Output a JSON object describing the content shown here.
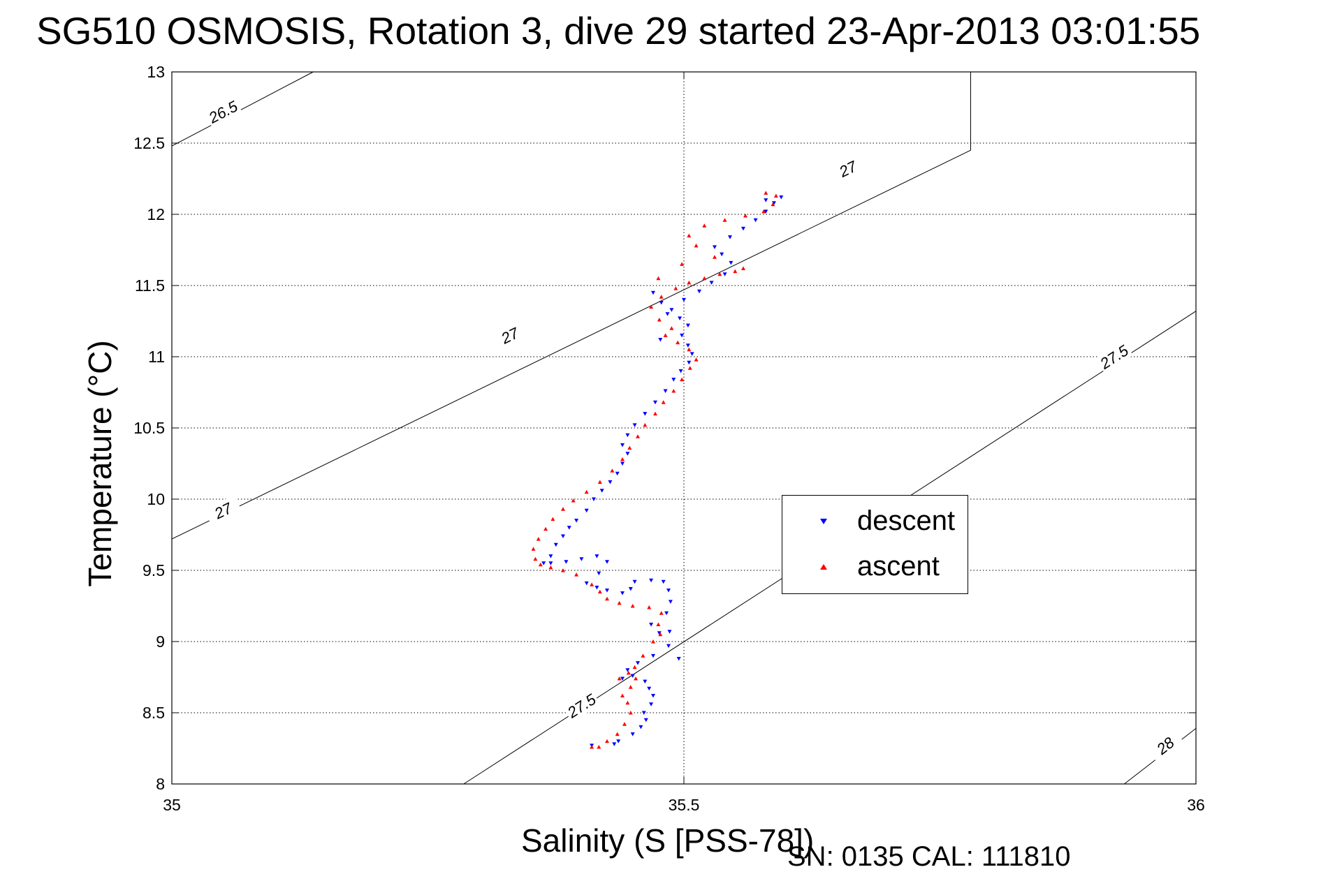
{
  "title": "SG510 OSMOSIS, Rotation 3, dive 29 started 23-Apr-2013 03:01:55",
  "footer": "SN: 0135  CAL: 111810",
  "chart_data": {
    "type": "scatter",
    "xlabel": "Salinity (S [PSS-78])",
    "ylabel": "Temperature (°C)",
    "xlim": [
      35,
      36
    ],
    "ylim": [
      8,
      13
    ],
    "xticks": [
      "35",
      "35.5",
      "36"
    ],
    "yticks": [
      "8",
      "8.5",
      "9",
      "9.5",
      "10",
      "10.5",
      "11",
      "11.5",
      "12",
      "12.5",
      "13"
    ],
    "grid": true,
    "legend_position": "lower-right",
    "contour_labels": [
      "26.5",
      "27",
      "27",
      "27",
      "27.5",
      "27.5",
      "28"
    ],
    "series": [
      {
        "name": "descent",
        "color": "#0000ff",
        "marker": "triangle-down",
        "points": [
          [
            35.432,
            8.28
          ],
          [
            35.41,
            8.27
          ],
          [
            35.436,
            8.3
          ],
          [
            35.45,
            8.35
          ],
          [
            35.458,
            8.4
          ],
          [
            35.463,
            8.45
          ],
          [
            35.461,
            8.5
          ],
          [
            35.468,
            8.56
          ],
          [
            35.47,
            8.62
          ],
          [
            35.466,
            8.67
          ],
          [
            35.462,
            8.72
          ],
          [
            35.45,
            8.76
          ],
          [
            35.44,
            8.74
          ],
          [
            35.445,
            8.8
          ],
          [
            35.455,
            8.85
          ],
          [
            35.47,
            8.9
          ],
          [
            35.485,
            8.97
          ],
          [
            35.495,
            8.88
          ],
          [
            35.486,
            9.07
          ],
          [
            35.476,
            9.06
          ],
          [
            35.468,
            9.12
          ],
          [
            35.483,
            9.2
          ],
          [
            35.487,
            9.28
          ],
          [
            35.485,
            9.36
          ],
          [
            35.48,
            9.42
          ],
          [
            35.468,
            9.43
          ],
          [
            35.452,
            9.42
          ],
          [
            35.448,
            9.37
          ],
          [
            35.44,
            9.34
          ],
          [
            35.425,
            9.36
          ],
          [
            35.415,
            9.38
          ],
          [
            35.405,
            9.41
          ],
          [
            35.417,
            9.48
          ],
          [
            35.425,
            9.56
          ],
          [
            35.415,
            9.6
          ],
          [
            35.4,
            9.58
          ],
          [
            35.385,
            9.56
          ],
          [
            35.37,
            9.55
          ],
          [
            35.363,
            9.55
          ],
          [
            35.37,
            9.6
          ],
          [
            35.375,
            9.68
          ],
          [
            35.382,
            9.74
          ],
          [
            35.388,
            9.8
          ],
          [
            35.395,
            9.85
          ],
          [
            35.405,
            9.92
          ],
          [
            35.412,
            10.0
          ],
          [
            35.42,
            10.06
          ],
          [
            35.428,
            10.12
          ],
          [
            35.435,
            10.18
          ],
          [
            35.44,
            10.25
          ],
          [
            35.445,
            10.32
          ],
          [
            35.44,
            10.38
          ],
          [
            35.445,
            10.45
          ],
          [
            35.452,
            10.52
          ],
          [
            35.462,
            10.6
          ],
          [
            35.472,
            10.68
          ],
          [
            35.482,
            10.76
          ],
          [
            35.49,
            10.84
          ],
          [
            35.497,
            10.9
          ],
          [
            35.505,
            10.96
          ],
          [
            35.508,
            11.02
          ],
          [
            35.504,
            11.08
          ],
          [
            35.498,
            11.15
          ],
          [
            35.504,
            11.22
          ],
          [
            35.496,
            11.27
          ],
          [
            35.488,
            11.33
          ],
          [
            35.478,
            11.38
          ],
          [
            35.47,
            11.45
          ],
          [
            35.477,
            11.12
          ],
          [
            35.484,
            11.3
          ],
          [
            35.5,
            11.4
          ],
          [
            35.515,
            11.46
          ],
          [
            35.527,
            11.52
          ],
          [
            35.54,
            11.58
          ],
          [
            35.546,
            11.66
          ],
          [
            35.537,
            11.72
          ],
          [
            35.53,
            11.77
          ],
          [
            35.545,
            11.84
          ],
          [
            35.558,
            11.9
          ],
          [
            35.57,
            11.96
          ],
          [
            35.58,
            12.02
          ],
          [
            35.588,
            12.08
          ],
          [
            35.595,
            12.12
          ],
          [
            35.58,
            12.1
          ]
        ]
      },
      {
        "name": "ascent",
        "color": "#ff0000",
        "marker": "triangle-up",
        "points": [
          [
            35.417,
            8.26
          ],
          [
            35.41,
            8.26
          ],
          [
            35.425,
            8.3
          ],
          [
            35.435,
            8.35
          ],
          [
            35.442,
            8.42
          ],
          [
            35.448,
            8.5
          ],
          [
            35.445,
            8.57
          ],
          [
            35.44,
            8.62
          ],
          [
            35.448,
            8.68
          ],
          [
            35.453,
            8.74
          ],
          [
            35.446,
            8.78
          ],
          [
            35.437,
            8.74
          ],
          [
            35.452,
            8.82
          ],
          [
            35.46,
            8.9
          ],
          [
            35.47,
            9.0
          ],
          [
            35.477,
            9.05
          ],
          [
            35.475,
            9.12
          ],
          [
            35.478,
            9.2
          ],
          [
            35.466,
            9.24
          ],
          [
            35.45,
            9.25
          ],
          [
            35.437,
            9.27
          ],
          [
            35.425,
            9.3
          ],
          [
            35.418,
            9.35
          ],
          [
            35.41,
            9.4
          ],
          [
            35.395,
            9.47
          ],
          [
            35.382,
            9.5
          ],
          [
            35.37,
            9.52
          ],
          [
            35.36,
            9.54
          ],
          [
            35.355,
            9.58
          ],
          [
            35.353,
            9.65
          ],
          [
            35.358,
            9.72
          ],
          [
            35.365,
            9.79
          ],
          [
            35.372,
            9.86
          ],
          [
            35.382,
            9.93
          ],
          [
            35.392,
            9.99
          ],
          [
            35.405,
            10.05
          ],
          [
            35.418,
            10.12
          ],
          [
            35.43,
            10.2
          ],
          [
            35.44,
            10.28
          ],
          [
            35.447,
            10.36
          ],
          [
            35.455,
            10.44
          ],
          [
            35.462,
            10.52
          ],
          [
            35.472,
            10.6
          ],
          [
            35.48,
            10.68
          ],
          [
            35.49,
            10.76
          ],
          [
            35.498,
            10.84
          ],
          [
            35.506,
            10.92
          ],
          [
            35.512,
            10.98
          ],
          [
            35.505,
            11.05
          ],
          [
            35.494,
            11.1
          ],
          [
            35.482,
            11.15
          ],
          [
            35.488,
            11.2
          ],
          [
            35.476,
            11.26
          ],
          [
            35.468,
            11.35
          ],
          [
            35.478,
            11.42
          ],
          [
            35.492,
            11.48
          ],
          [
            35.505,
            11.52
          ],
          [
            35.52,
            11.55
          ],
          [
            35.535,
            11.58
          ],
          [
            35.55,
            11.6
          ],
          [
            35.558,
            11.62
          ],
          [
            35.53,
            11.7
          ],
          [
            35.512,
            11.78
          ],
          [
            35.505,
            11.85
          ],
          [
            35.52,
            11.92
          ],
          [
            35.54,
            11.96
          ],
          [
            35.56,
            11.99
          ],
          [
            35.578,
            12.02
          ],
          [
            35.587,
            12.07
          ],
          [
            35.59,
            12.13
          ],
          [
            35.58,
            12.15
          ],
          [
            35.475,
            11.55
          ],
          [
            35.498,
            11.65
          ]
        ]
      }
    ],
    "contours": [
      {
        "label": "26.5",
        "points": [
          [
            35.0,
            12.48
          ],
          [
            35.138,
            13.0
          ]
        ]
      },
      {
        "label": "27",
        "points": [
          [
            35.0,
            9.72
          ],
          [
            35.78,
            12.45
          ],
          [
            35.78,
            13.0
          ]
        ]
      },
      {
        "label": "27.5",
        "points": [
          [
            35.285,
            8.0
          ],
          [
            36.0,
            11.32
          ]
        ]
      },
      {
        "label": "28",
        "points": [
          [
            35.93,
            8.0
          ],
          [
            36.0,
            8.39
          ]
        ]
      }
    ]
  },
  "legend": {
    "descent_label": "descent",
    "ascent_label": "ascent"
  }
}
